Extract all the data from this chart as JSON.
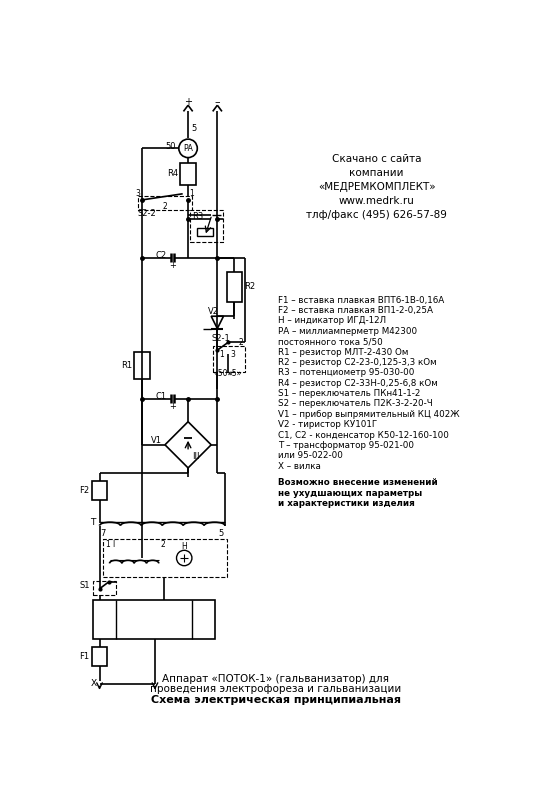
{
  "title_top": "Скачано с сайта\nкомпании\n«МЕДРЕМКОМПЛЕКТ»\nwww.medrk.ru\nтлф/факс (495) 626-57-89",
  "legend_lines": [
    "F1 – вставка плавкая ВПТ6-1В-0,16А",
    "F2 – вставка плавкая ВП1-2-0,25А",
    "Н – индикатор ИГД-12Л",
    "РА – миллиамперметр М42300",
    "постоянного тока 5/50",
    "R1 – резистор МЛТ-2-430 Ом",
    "R2 – резистор С2-23-0,125-3,3 кОм",
    "R3 – потенциометр 95-030-00",
    "R4 – резистор С2-33Н-0,25-6,8 кОм",
    "S1 – переключатель ПКн41-1-2",
    "S2 – переключатель П2К-3-2-20-Ч",
    "V1 – прибор выпрямительный КЦ 402Ж",
    "V2 - тиристор КУ101Г",
    "С1, С2 - конденсатор К50-12-160-100",
    "Т – трансформатор 95-021-00",
    "или 95-022-00",
    "Х – вилка"
  ],
  "bold_lines": [
    "Возможно внесение изменений",
    "не ухудшающих параметры",
    "и характеристики изделия"
  ],
  "bottom_text_line1": "Аппарат «ПОТОК-1» (гальванизатор) для",
  "bottom_text_line2": "проведения электрофореза и гальванизации",
  "bottom_text_line3": "Схема электрическая принципиальная"
}
